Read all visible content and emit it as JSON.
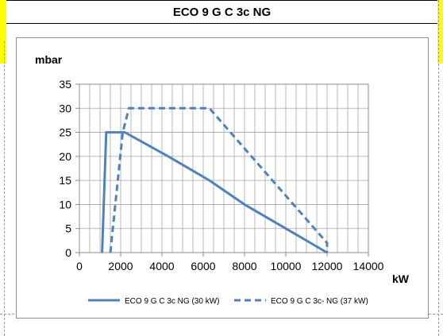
{
  "title": "ECO 9 G C 3c NG",
  "chart_data": {
    "type": "line",
    "ylabel": "mbar",
    "xlabel": "kW",
    "xlim": [
      0,
      14000
    ],
    "ylim": [
      0,
      35
    ],
    "x_ticks": [
      0,
      2000,
      4000,
      6000,
      8000,
      10000,
      12000,
      14000
    ],
    "y_ticks": [
      0,
      5,
      10,
      15,
      20,
      25,
      30,
      35
    ],
    "x_minor_step": 500,
    "grid": true,
    "legend_position": "bottom",
    "series": [
      {
        "name": "ECO 9 G C 3c NG (30 kW)",
        "style": "solid",
        "color": "#4f81bd",
        "x": [
          1100,
          1300,
          2200,
          4300,
          6300,
          8000,
          10000,
          12000
        ],
        "y": [
          0,
          25,
          25,
          20,
          15,
          10,
          5,
          0
        ]
      },
      {
        "name": "ECO 9 G C 3c- NG (37 kW)",
        "style": "dashed",
        "color": "#4f81bd",
        "x": [
          1500,
          2100,
          2400,
          6300,
          12000,
          12000
        ],
        "y": [
          0,
          25,
          30,
          30,
          2,
          0
        ]
      }
    ]
  }
}
